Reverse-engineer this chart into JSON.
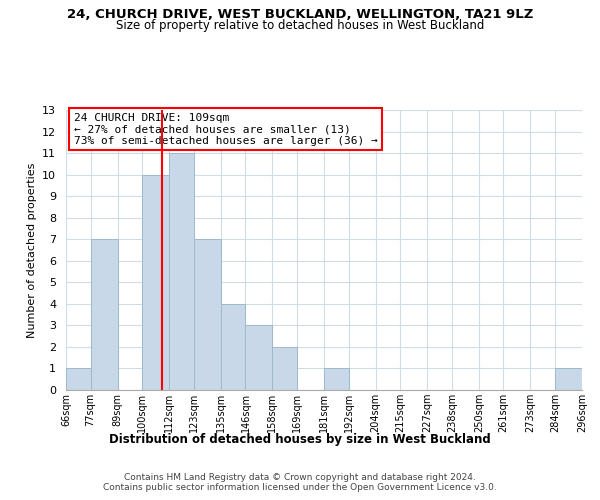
{
  "title": "24, CHURCH DRIVE, WEST BUCKLAND, WELLINGTON, TA21 9LZ",
  "subtitle": "Size of property relative to detached houses in West Buckland",
  "xlabel": "Distribution of detached houses by size in West Buckland",
  "ylabel": "Number of detached properties",
  "bar_color": "#c8d8e8",
  "bar_edge_color": "#a0b8cc",
  "redline_x": 109,
  "annotation_title": "24 CHURCH DRIVE: 109sqm",
  "annotation_line1": "← 27% of detached houses are smaller (13)",
  "annotation_line2": "73% of semi-detached houses are larger (36) →",
  "bin_edges": [
    66,
    77,
    89,
    100,
    112,
    123,
    135,
    146,
    158,
    169,
    181,
    192,
    204,
    215,
    227,
    238,
    250,
    261,
    273,
    284,
    296
  ],
  "bin_labels": [
    "66sqm",
    "77sqm",
    "89sqm",
    "100sqm",
    "112sqm",
    "123sqm",
    "135sqm",
    "146sqm",
    "158sqm",
    "169sqm",
    "181sqm",
    "192sqm",
    "204sqm",
    "215sqm",
    "227sqm",
    "238sqm",
    "250sqm",
    "261sqm",
    "273sqm",
    "284sqm",
    "296sqm"
  ],
  "counts": [
    1,
    7,
    0,
    10,
    11,
    7,
    4,
    3,
    2,
    0,
    1,
    0,
    0,
    0,
    0,
    0,
    0,
    0,
    0,
    1
  ],
  "ylim": [
    0,
    13
  ],
  "yticks": [
    0,
    1,
    2,
    3,
    4,
    5,
    6,
    7,
    8,
    9,
    10,
    11,
    12,
    13
  ],
  "footer1": "Contains HM Land Registry data © Crown copyright and database right 2024.",
  "footer2": "Contains public sector information licensed under the Open Government Licence v3.0.",
  "background_color": "#ffffff",
  "grid_color": "#d0dce8"
}
